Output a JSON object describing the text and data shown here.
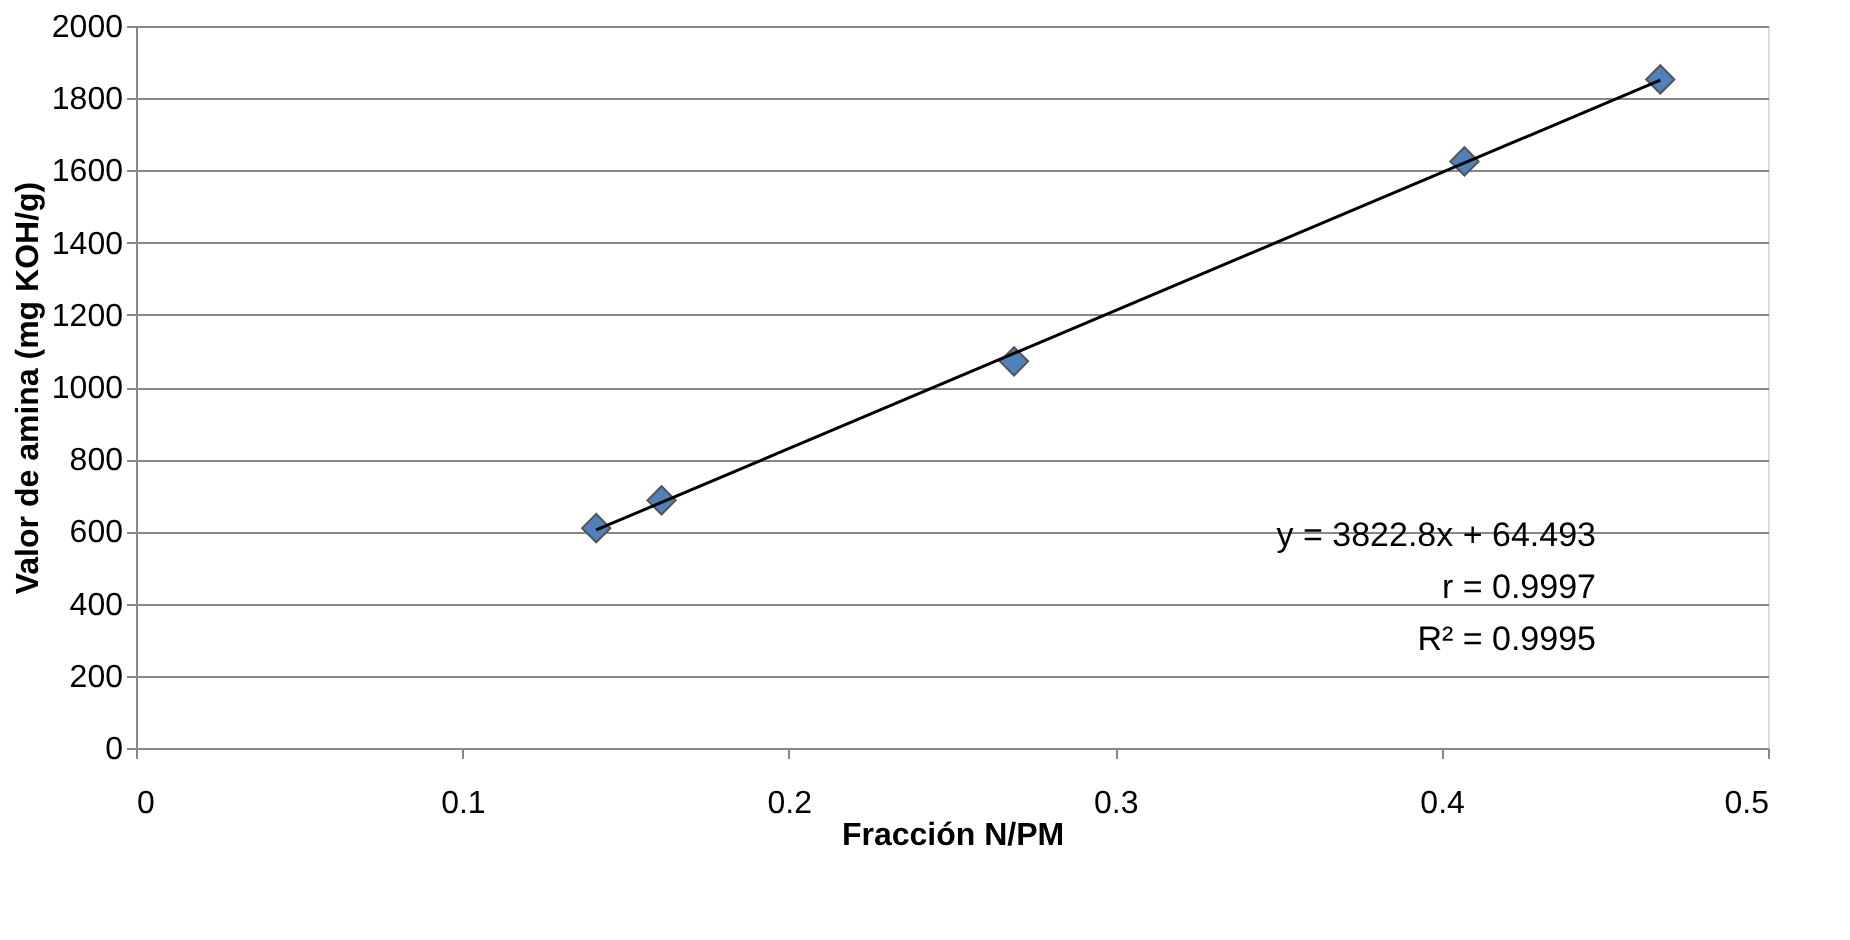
{
  "chart_data": {
    "type": "scatter",
    "xlabel": "Fracción N/PM",
    "ylabel": "Valor de amina (mg KOH/g)",
    "series": [
      {
        "color": "#4f81bd",
        "marker": "diamond",
        "x": [
          0.141,
          0.161,
          0.269,
          0.407,
          0.467
        ],
        "values": [
          609,
          686,
          1071,
          1625,
          1852
        ]
      },
      {
        "type": "line",
        "color": "#000000",
        "line_style": "solid",
        "x": [
          0.141,
          0.467
        ],
        "values": [
          604,
          1850
        ]
      }
    ],
    "annotations": [
      "y = 3822.8x + 64.493",
      "r = 0.9997",
      "R² = 0.9995"
    ],
    "xlim": [
      0,
      0.5
    ],
    "xticks": [
      0,
      0.1,
      0.2,
      0.3,
      0.4,
      0.5
    ],
    "ylim": [
      0,
      2000
    ],
    "yticks": [
      0,
      200,
      400,
      600,
      800,
      1000,
      1200,
      1400,
      1600,
      1800,
      2000
    ],
    "grid": "y"
  }
}
